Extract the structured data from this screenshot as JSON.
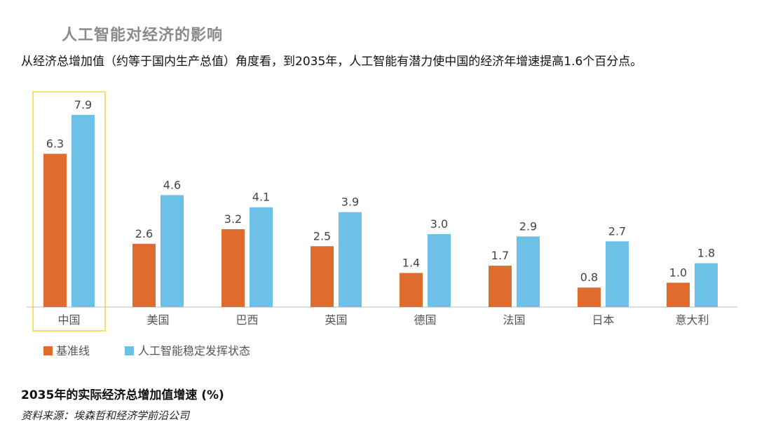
{
  "title": "人工智能对经济的影响",
  "subtitle": "从经济总增加值（约等于国内生产总值）角度看，到2035年，人工智能有潜力使中国的经济年增速提高1.6个百分点。",
  "footer_title": "2035年的实际经济总增加值增速 (%)",
  "source": "资料来源：埃森哲和经济学前沿公司",
  "colors": {
    "baseline": "#e06b2e",
    "ai": "#6dc0e6",
    "highlight": "#f1e36e",
    "axis": "#bbbbbb"
  },
  "chart_data": {
    "type": "bar",
    "categories": [
      "中国",
      "美国",
      "巴西",
      "英国",
      "德国",
      "法国",
      "日本",
      "意大利"
    ],
    "series": [
      {
        "name": "基准线",
        "values": [
          6.3,
          2.6,
          3.2,
          2.5,
          1.4,
          1.7,
          0.8,
          1.0
        ]
      },
      {
        "name": "人工智能稳定发挥状态",
        "values": [
          7.9,
          4.6,
          4.1,
          3.9,
          3.0,
          2.9,
          2.7,
          1.8
        ]
      }
    ],
    "value_labels": [
      [
        "6.3",
        "2.6",
        "3.2",
        "2.5",
        "1.4",
        "1.7",
        "0.8",
        "1.0"
      ],
      [
        "7.9",
        "4.6",
        "4.1",
        "3.9",
        "3.0",
        "2.9",
        "2.7",
        "1.8"
      ]
    ],
    "highlighted_category": "中国",
    "legend_position": "bottom-left",
    "grid": false
  }
}
